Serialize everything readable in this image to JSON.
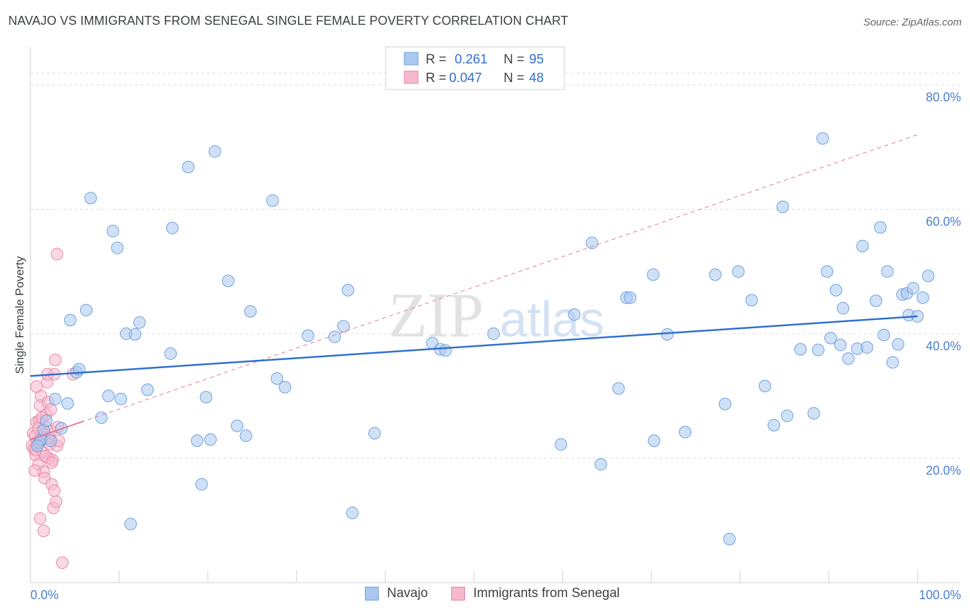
{
  "header": {
    "title": "NAVAJO VS IMMIGRANTS FROM SENEGAL SINGLE FEMALE POVERTY CORRELATION CHART",
    "source": "Source: ZipAtlas.com"
  },
  "colors": {
    "navajo_fill": "#aac8f0",
    "navajo_stroke": "#6d9fdc",
    "navajo_line": "#2e6fd0",
    "senegal_fill": "#f6b8cc",
    "senegal_stroke": "#e787a7",
    "senegal_line": "#e07a98",
    "axis_text": "#4a7fd0",
    "grid": "#dcdcdc"
  },
  "legend": {
    "rows": [
      {
        "r_label": "R =",
        "r_value": "0.261",
        "n_label": "N =",
        "n_value": "95"
      },
      {
        "r_label": "R =",
        "r_value": "0.047",
        "n_label": "N =",
        "n_value": "48"
      }
    ],
    "bottom": [
      "Navajo",
      "Immigrants from Senegal"
    ]
  },
  "watermark": {
    "zip": "ZIP",
    "atlas": "atlas"
  },
  "chart_data": {
    "type": "scatter",
    "title": "NAVAJO VS IMMIGRANTS FROM SENEGAL SINGLE FEMALE POVERTY CORRELATION CHART",
    "xlabel": "",
    "ylabel": "Single Female Poverty",
    "xlim": [
      0,
      100
    ],
    "ylim": [
      0,
      85
    ],
    "x_tick_labels": [
      {
        "value": 0,
        "label": "0.0%"
      },
      {
        "value": 100,
        "label": "100.0%"
      }
    ],
    "y_tick_labels": [
      {
        "value": 20,
        "label": "20.0%"
      },
      {
        "value": 40,
        "label": "40.0%"
      },
      {
        "value": 60,
        "label": "60.0%"
      },
      {
        "value": 80,
        "label": "80.0%"
      }
    ],
    "grid": true,
    "legend_position": "top-center",
    "series": [
      {
        "name": "Navajo",
        "R": 0.261,
        "N": 95,
        "trend": {
          "x": [
            0,
            100
          ],
          "y": [
            33.2,
            42.8
          ]
        },
        "points": [
          [
            1.0,
            22.5
          ],
          [
            1.2,
            23.0
          ],
          [
            0.8,
            22.0
          ],
          [
            1.5,
            24.5
          ],
          [
            1.8,
            26.0
          ],
          [
            2.3,
            22.8
          ],
          [
            2.8,
            29.5
          ],
          [
            3.5,
            24.8
          ],
          [
            4.2,
            28.8
          ],
          [
            4.5,
            42.2
          ],
          [
            5.2,
            33.8
          ],
          [
            5.5,
            34.3
          ],
          [
            6.3,
            43.8
          ],
          [
            6.8,
            61.8
          ],
          [
            8.0,
            26.5
          ],
          [
            8.8,
            30.0
          ],
          [
            9.3,
            56.5
          ],
          [
            9.8,
            53.8
          ],
          [
            10.2,
            29.5
          ],
          [
            10.8,
            40.0
          ],
          [
            11.3,
            9.4
          ],
          [
            11.8,
            39.9
          ],
          [
            12.3,
            41.8
          ],
          [
            13.2,
            31.0
          ],
          [
            15.8,
            36.8
          ],
          [
            16.0,
            57.0
          ],
          [
            17.8,
            66.8
          ],
          [
            18.8,
            22.8
          ],
          [
            19.3,
            15.8
          ],
          [
            19.8,
            29.8
          ],
          [
            20.3,
            23.0
          ],
          [
            20.8,
            69.3
          ],
          [
            22.3,
            48.5
          ],
          [
            23.3,
            25.2
          ],
          [
            24.3,
            23.6
          ],
          [
            24.8,
            43.6
          ],
          [
            27.3,
            61.4
          ],
          [
            27.8,
            32.8
          ],
          [
            28.7,
            31.4
          ],
          [
            31.3,
            39.7
          ],
          [
            34.3,
            39.5
          ],
          [
            35.3,
            41.2
          ],
          [
            35.8,
            47.0
          ],
          [
            36.3,
            11.2
          ],
          [
            38.8,
            24.0
          ],
          [
            45.3,
            38.5
          ],
          [
            46.2,
            37.5
          ],
          [
            46.8,
            37.3
          ],
          [
            52.2,
            40.0
          ],
          [
            59.8,
            22.2
          ],
          [
            61.3,
            43.1
          ],
          [
            63.3,
            54.6
          ],
          [
            64.3,
            19.0
          ],
          [
            66.3,
            31.2
          ],
          [
            67.2,
            45.8
          ],
          [
            67.6,
            45.8
          ],
          [
            70.2,
            49.5
          ],
          [
            70.3,
            22.8
          ],
          [
            71.8,
            39.9
          ],
          [
            73.8,
            24.2
          ],
          [
            77.2,
            49.5
          ],
          [
            78.3,
            28.7
          ],
          [
            78.8,
            7.0
          ],
          [
            79.8,
            50.0
          ],
          [
            81.3,
            45.4
          ],
          [
            82.8,
            31.6
          ],
          [
            83.8,
            25.3
          ],
          [
            84.8,
            60.4
          ],
          [
            85.3,
            26.8
          ],
          [
            86.8,
            37.5
          ],
          [
            88.3,
            27.2
          ],
          [
            88.8,
            37.4
          ],
          [
            89.3,
            71.4
          ],
          [
            89.8,
            50.0
          ],
          [
            90.2,
            39.3
          ],
          [
            90.8,
            47.0
          ],
          [
            91.3,
            38.2
          ],
          [
            91.6,
            44.1
          ],
          [
            92.2,
            36.0
          ],
          [
            93.2,
            37.6
          ],
          [
            93.8,
            54.1
          ],
          [
            94.3,
            37.8
          ],
          [
            95.3,
            45.3
          ],
          [
            95.8,
            57.1
          ],
          [
            96.2,
            39.8
          ],
          [
            96.6,
            50.0
          ],
          [
            97.2,
            35.4
          ],
          [
            97.8,
            38.3
          ],
          [
            98.3,
            46.3
          ],
          [
            98.8,
            46.5
          ],
          [
            99.0,
            43.0
          ],
          [
            99.5,
            47.3
          ],
          [
            100.0,
            42.8
          ],
          [
            100.6,
            45.8
          ],
          [
            101.2,
            49.3
          ]
        ]
      },
      {
        "name": "Immigrants from Senegal",
        "R": 0.047,
        "N": 48,
        "trend": {
          "x": [
            0,
            100
          ],
          "y": [
            23.0,
            72.0
          ]
        },
        "points": [
          [
            0.2,
            22.0
          ],
          [
            0.3,
            24.0
          ],
          [
            0.4,
            21.5
          ],
          [
            0.5,
            23.5
          ],
          [
            0.6,
            20.5
          ],
          [
            0.7,
            25.8
          ],
          [
            0.8,
            22.5
          ],
          [
            0.9,
            19.0
          ],
          [
            1.0,
            26.0
          ],
          [
            1.1,
            28.5
          ],
          [
            1.2,
            30.0
          ],
          [
            1.3,
            23.0
          ],
          [
            1.4,
            21.0
          ],
          [
            1.5,
            17.8
          ],
          [
            1.6,
            16.8
          ],
          [
            1.7,
            25.0
          ],
          [
            1.8,
            27.0
          ],
          [
            1.9,
            32.2
          ],
          [
            2.0,
            29.0
          ],
          [
            2.1,
            20.0
          ],
          [
            2.2,
            22.2
          ],
          [
            2.3,
            24.3
          ],
          [
            2.4,
            15.8
          ],
          [
            2.5,
            19.7
          ],
          [
            2.6,
            12.0
          ],
          [
            2.7,
            33.5
          ],
          [
            2.8,
            35.8
          ],
          [
            2.9,
            13.0
          ],
          [
            3.0,
            22.0
          ],
          [
            3.1,
            25.0
          ],
          [
            0.5,
            18.0
          ],
          [
            0.9,
            24.8
          ],
          [
            1.3,
            26.5
          ],
          [
            1.7,
            20.3
          ],
          [
            2.1,
            23.3
          ],
          [
            0.7,
            31.5
          ],
          [
            1.1,
            10.3
          ],
          [
            1.5,
            8.3
          ],
          [
            1.9,
            33.5
          ],
          [
            2.3,
            27.8
          ],
          [
            2.7,
            14.8
          ],
          [
            3.2,
            22.8
          ],
          [
            0.6,
            21.3
          ],
          [
            1.6,
            23.8
          ],
          [
            2.4,
            19.3
          ],
          [
            4.8,
            33.5
          ],
          [
            3.0,
            52.8
          ],
          [
            3.6,
            3.2
          ]
        ]
      }
    ]
  }
}
